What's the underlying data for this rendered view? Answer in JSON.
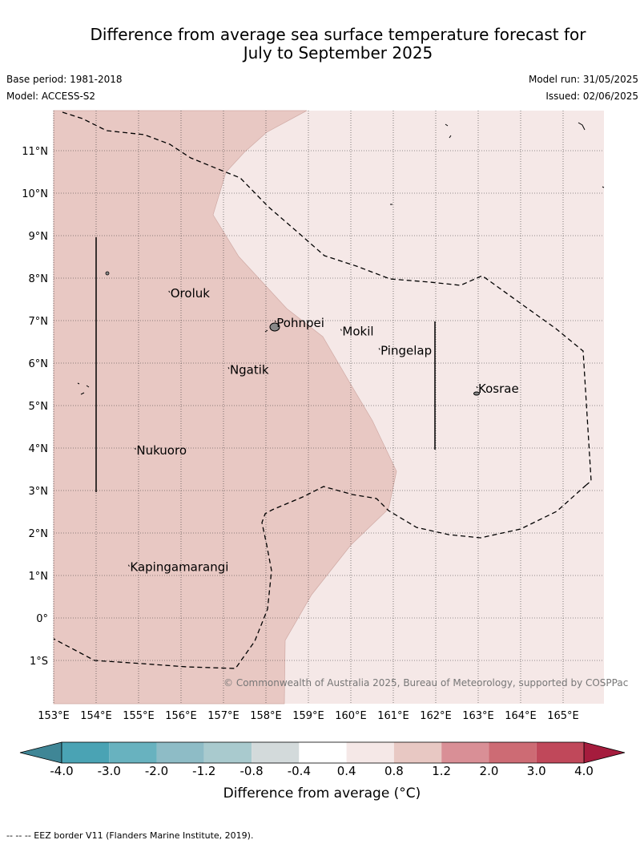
{
  "header": {
    "title_line1": "Difference from average sea surface temperature forecast for",
    "title_line2": "July to September 2025",
    "base_period": "Base period: 1981-2018",
    "model": "Model: ACCESS-S2",
    "model_run": "Model run: 31/05/2025",
    "issued": "Issued: 02/06/2025"
  },
  "map": {
    "lon_labels": [
      "153°E",
      "154°E",
      "155°E",
      "156°E",
      "157°E",
      "158°E",
      "159°E",
      "160°E",
      "161°E",
      "162°E",
      "163°E",
      "164°E",
      "165°E"
    ],
    "lat_labels": [
      "11°N",
      "10°N",
      "9°N",
      "8°N",
      "7°N",
      "6°N",
      "5°N",
      "4°N",
      "3°N",
      "2°N",
      "1°N",
      "0°",
      "1°S"
    ],
    "places": [
      {
        "name": "Oroluk",
        "lon": 155.75,
        "lat": 7.55
      },
      {
        "name": "Pohnpei",
        "lon": 158.25,
        "lat": 6.85
      },
      {
        "name": "Mokil",
        "lon": 159.8,
        "lat": 6.65
      },
      {
        "name": "Pingelap",
        "lon": 160.7,
        "lat": 6.2
      },
      {
        "name": "Ngatik",
        "lon": 157.15,
        "lat": 5.75
      },
      {
        "name": "Kosrae",
        "lon": 163.0,
        "lat": 5.3
      },
      {
        "name": "Nukuoro",
        "lon": 154.95,
        "lat": 3.85
      },
      {
        "name": "Kapingamarangi",
        "lon": 154.8,
        "lat": 1.1
      }
    ],
    "anomaly_colors": {
      "warm_0.8_1.2": "#e8c8c3",
      "mild_0.4_0.8": "#f5e8e7"
    },
    "credit": "© Commonwealth of Australia 2025, Bureau of Meteorology, supported by COSPPac"
  },
  "colorbar": {
    "ticks": [
      "-4.0",
      "-3.0",
      "-2.0",
      "-1.2",
      "-0.8",
      "-0.4",
      "0.4",
      "0.8",
      "1.2",
      "2.0",
      "3.0",
      "4.0"
    ],
    "colors": [
      "#4aa3b4",
      "#68b2bf",
      "#8ebcc6",
      "#a9cace",
      "#d3dadb",
      "#ffffff",
      "#f5e8e7",
      "#e8c8c3",
      "#d98f96",
      "#cd6b74",
      "#c0485a"
    ],
    "under_color": "#3f8696",
    "over_color": "#a51c3d",
    "label": "Difference from average (°C)"
  },
  "footnote": "--  --  -- EEZ border V11 (Flanders Marine Institute, 2019)."
}
